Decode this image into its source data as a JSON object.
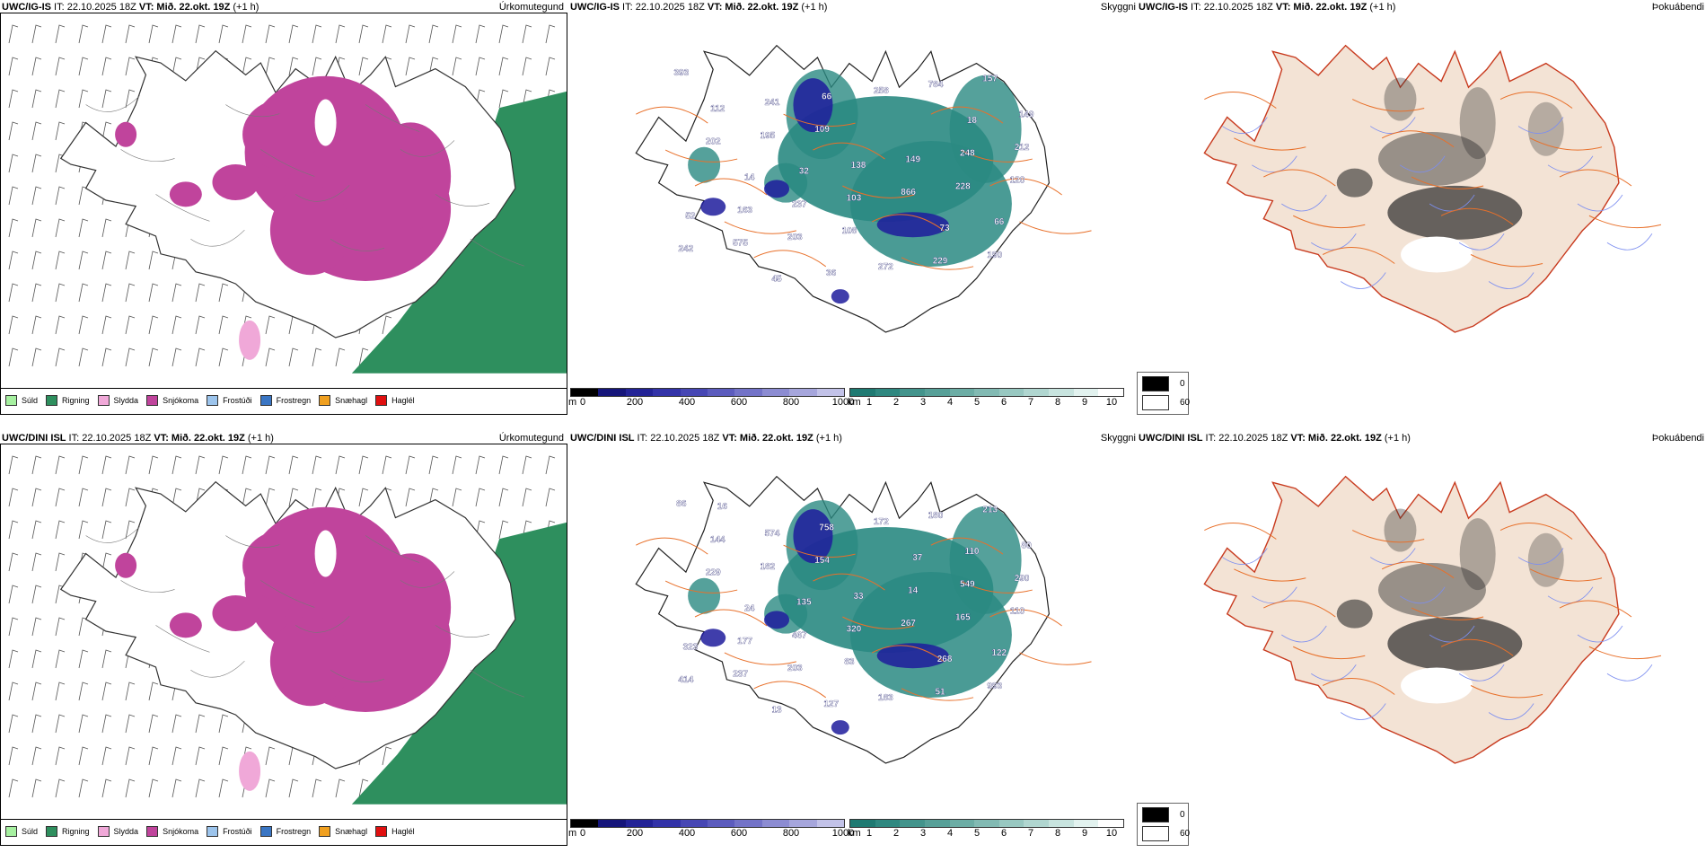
{
  "colors": {
    "sudd": "#a6f0a0",
    "rigning": "#2e8f5e",
    "slydda": "#f0a8d8",
    "snjokoma": "#c0449c",
    "frostudi": "#9cc4ec",
    "frostregn": "#3a76c4",
    "snaehagl": "#f0a020",
    "hagl": "#e01010",
    "land_dark": "#f3e3d5",
    "road": "#e8702a",
    "river": "#7c8ef0",
    "teal": "#2a8a82",
    "navy": "#1e1c9c"
  },
  "rows": [
    {
      "model_label": "UWC/IG-IS",
      "header_mid": " IT: 22.10.2025 18Z ",
      "vt_label": "VT: Mið. 22.okt. 19Z",
      "lead": " (+1 h)",
      "elevation_labels": [
        "393",
        "108",
        "120",
        "109",
        "157",
        "203",
        "228",
        "195",
        "784",
        "575",
        "866",
        "202",
        "258",
        "242",
        "103",
        "212",
        "66",
        "190",
        "237",
        "248",
        "241",
        "229",
        "163",
        "149",
        "112",
        "272",
        "52",
        "138",
        "149",
        "36",
        "66",
        "32",
        "18",
        "45",
        "73",
        "14"
      ]
    },
    {
      "model_label": "UWC/DINI ISL",
      "header_mid": " IT: 22.10.2025 18Z ",
      "vt_label": "VT: Mið. 22.okt. 19Z",
      "lead": " (+1 h)",
      "elevation_labels": [
        "86",
        "83",
        "110",
        "154",
        "213",
        "203",
        "165",
        "182",
        "180",
        "237",
        "267",
        "229",
        "172",
        "414",
        "320",
        "290",
        "758",
        "993",
        "467",
        "549",
        "574",
        "51",
        "177",
        "14",
        "144",
        "183",
        "323",
        "33",
        "80",
        "127",
        "122",
        "135",
        "110",
        "13",
        "268",
        "24",
        "37",
        "16"
      ]
    }
  ],
  "panel_titles": {
    "precip": "Úrkomutegund",
    "cloud": "Skyggni",
    "fog": "Þokuábendi"
  },
  "precip_legend": [
    {
      "label": "Súld",
      "color": "#a6f0a0"
    },
    {
      "label": "Rigning",
      "color": "#2e8f5e"
    },
    {
      "label": "Slydda",
      "color": "#f0a8d8"
    },
    {
      "label": "Snjókoma",
      "color": "#c0449c"
    },
    {
      "label": "Frostúði",
      "color": "#9cc4ec"
    },
    {
      "label": "Frostregn",
      "color": "#3a76c4"
    },
    {
      "label": "Snæhagl",
      "color": "#f0a020"
    },
    {
      "label": "Haglél",
      "color": "#e01010"
    }
  ],
  "height_bar": {
    "unit": "m",
    "ticks": [
      "0",
      "200",
      "400",
      "600",
      "800",
      "1000"
    ],
    "colors": [
      "#000000",
      "#15157a",
      "#232396",
      "#3333a8",
      "#4747b4",
      "#5c5cbe",
      "#7373c8",
      "#8c8cd2",
      "#a6a6dc",
      "#c2c2e8"
    ]
  },
  "vis_bar": {
    "unit": "km",
    "ticks": [
      "1",
      "2",
      "3",
      "4",
      "5",
      "6",
      "7",
      "8",
      "9",
      "10"
    ],
    "colors": [
      "#1f7a72",
      "#2f8880",
      "#43948c",
      "#57a098",
      "#6cada5",
      "#82bab3",
      "#98c8c1",
      "#b0d6d0",
      "#c8e4df",
      "#e2f2ef",
      "#ffffff"
    ]
  },
  "fog_legend": [
    {
      "label": "0",
      "color": "#000000"
    },
    {
      "label": "60",
      "color": "#ffffff"
    }
  ]
}
